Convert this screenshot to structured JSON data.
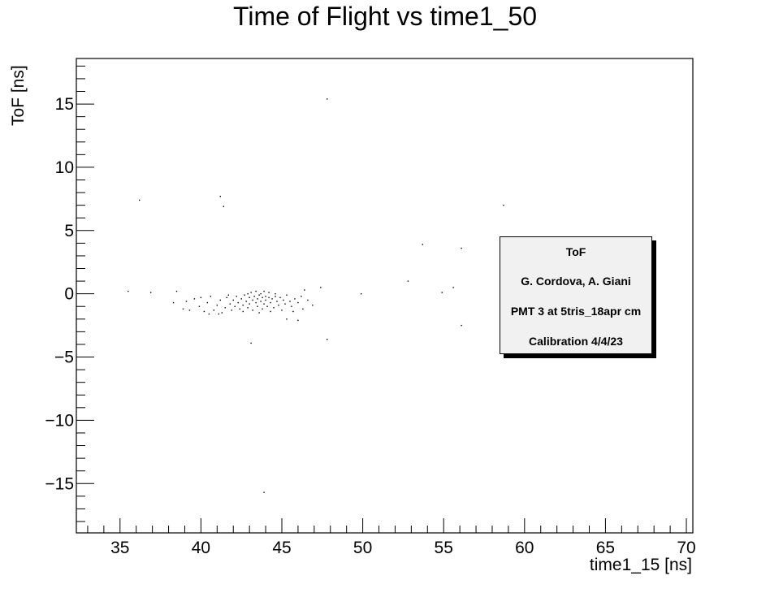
{
  "title": "Time of Flight vs time1_50",
  "chart_data": {
    "type": "scatter",
    "title": "Time of Flight vs time1_50",
    "xlabel": "time1_15 [ns]",
    "ylabel": "ToF [ns]",
    "xlim": [
      32.3,
      70.4
    ],
    "ylim": [
      -18.9,
      18.6
    ],
    "xticks": [
      35,
      40,
      45,
      50,
      55,
      60,
      65,
      70
    ],
    "yticks": [
      -15,
      -10,
      -5,
      0,
      5,
      10,
      15
    ],
    "xtick_labels": [
      "35",
      "40",
      "45",
      "50",
      "55",
      "60",
      "65",
      "70"
    ],
    "ytick_labels": [
      "−15",
      "−10",
      "−5",
      "0",
      "5",
      "10",
      "15"
    ],
    "grid": false,
    "legend": {
      "placement": "right",
      "lines": [
        "ToF",
        "G. Cordova, A. Giani",
        "PMT 3 at 5tris_18apr cm",
        "Calibration 4/4/23"
      ]
    },
    "points": [
      [
        47.8,
        15.4
      ],
      [
        36.2,
        7.4
      ],
      [
        41.2,
        7.7
      ],
      [
        41.4,
        6.9
      ],
      [
        58.7,
        7.0
      ],
      [
        53.7,
        3.9
      ],
      [
        56.1,
        3.6
      ],
      [
        35.5,
        0.2
      ],
      [
        36.9,
        0.1
      ],
      [
        38.5,
        0.2
      ],
      [
        47.4,
        0.5
      ],
      [
        49.9,
        0.0
      ],
      [
        52.8,
        1.0
      ],
      [
        54.9,
        0.1
      ],
      [
        55.6,
        0.5
      ],
      [
        56.1,
        -2.5
      ],
      [
        47.8,
        -3.6
      ],
      [
        43.1,
        -3.9
      ],
      [
        43.9,
        -15.7
      ],
      [
        46.0,
        -2.1
      ],
      [
        45.3,
        -2.0
      ],
      [
        38.3,
        -0.7
      ],
      [
        38.9,
        -1.2
      ],
      [
        39.3,
        -1.3
      ],
      [
        39.6,
        -0.4
      ],
      [
        39.9,
        -1.0
      ],
      [
        40.2,
        -1.4
      ],
      [
        40.4,
        -0.7
      ],
      [
        40.6,
        -0.2
      ],
      [
        40.8,
        -1.3
      ],
      [
        41.0,
        -0.9
      ],
      [
        41.2,
        -0.5
      ],
      [
        41.3,
        -1.5
      ],
      [
        41.5,
        -1.1
      ],
      [
        41.6,
        -0.3
      ],
      [
        41.8,
        -0.8
      ],
      [
        41.9,
        -1.3
      ],
      [
        42.0,
        -0.5
      ],
      [
        42.1,
        -1.0
      ],
      [
        42.2,
        -0.2
      ],
      [
        42.3,
        -0.7
      ],
      [
        42.4,
        -1.2
      ],
      [
        42.5,
        -0.4
      ],
      [
        42.6,
        -0.9
      ],
      [
        42.7,
        -0.1
      ],
      [
        42.8,
        -0.6
      ],
      [
        42.9,
        -1.1
      ],
      [
        43.0,
        -0.3
      ],
      [
        43.0,
        -0.8
      ],
      [
        43.1,
        0.1
      ],
      [
        43.2,
        -0.5
      ],
      [
        43.2,
        -1.3
      ],
      [
        43.3,
        -0.2
      ],
      [
        43.4,
        -0.7
      ],
      [
        43.4,
        0.2
      ],
      [
        43.5,
        -0.4
      ],
      [
        43.5,
        -1.0
      ],
      [
        43.6,
        -0.1
      ],
      [
        43.7,
        -0.6
      ],
      [
        43.7,
        0.0
      ],
      [
        43.8,
        -0.3
      ],
      [
        43.8,
        -1.2
      ],
      [
        43.9,
        -0.8
      ],
      [
        44.0,
        -0.2
      ],
      [
        44.0,
        -0.5
      ],
      [
        44.1,
        -1.0
      ],
      [
        44.2,
        -0.3
      ],
      [
        44.2,
        0.1
      ],
      [
        44.3,
        -0.7
      ],
      [
        44.4,
        -0.4
      ],
      [
        44.5,
        -1.1
      ],
      [
        44.6,
        -0.2
      ],
      [
        44.7,
        -0.6
      ],
      [
        44.8,
        -0.9
      ],
      [
        44.9,
        -0.3
      ],
      [
        45.0,
        -1.3
      ],
      [
        45.1,
        -0.5
      ],
      [
        45.2,
        -0.8
      ],
      [
        45.3,
        -0.1
      ],
      [
        45.5,
        -0.6
      ],
      [
        45.6,
        -1.0
      ],
      [
        45.8,
        -0.4
      ],
      [
        46.0,
        -0.7
      ],
      [
        46.2,
        -0.2
      ],
      [
        46.4,
        0.3
      ],
      [
        46.6,
        -0.5
      ],
      [
        46.9,
        -0.9
      ],
      [
        42.6,
        -1.4
      ],
      [
        43.6,
        -1.5
      ],
      [
        44.3,
        -1.4
      ],
      [
        41.1,
        -1.6
      ],
      [
        40.5,
        -1.6
      ],
      [
        45.7,
        -1.4
      ],
      [
        46.3,
        -1.2
      ],
      [
        43.9,
        0.2
      ],
      [
        42.9,
        0.0
      ],
      [
        41.7,
        -0.1
      ],
      [
        39.1,
        -0.6
      ],
      [
        40.0,
        -0.3
      ],
      [
        44.6,
        0.0
      ]
    ]
  }
}
